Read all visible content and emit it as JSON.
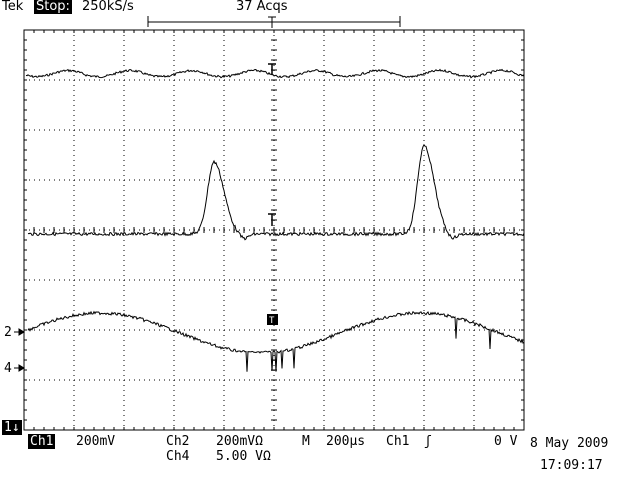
{
  "header": {
    "brand": "Tek",
    "run_state": "Stop:",
    "sample_rate": "250kS/s",
    "acquisitions": "37 Acqs"
  },
  "markers": {
    "ch2": "2",
    "ch4": "4",
    "ch1": "1"
  },
  "footer": {
    "ch1_label": "Ch1",
    "ch1_scale": "200mV",
    "ch2_label": "Ch2",
    "ch2_scale": "200mVΩ",
    "ch4_label": "Ch4",
    "ch4_scale": "5.00 VΩ",
    "timebase_label": "M",
    "timebase": "200µs",
    "trigger_source": "Ch1",
    "trigger_level": "0 V",
    "date": "8 May 2009",
    "time": "17:09:17"
  },
  "colors": {
    "trace": "#000000",
    "background": "#ffffff"
  },
  "chart_data": {
    "type": "line",
    "grid": {
      "divisions_x": 10,
      "divisions_y": 8,
      "dotted": true
    },
    "series": [
      {
        "channel": "Ch1",
        "scale": "200mV",
        "shape": "flat ripple, small periodic bumps"
      },
      {
        "channel": "Ch2",
        "scale": "200mVΩ",
        "shape": "baseline with two narrow peaks"
      },
      {
        "channel": "Ch4",
        "scale": "5.00 VΩ",
        "shape": "slow sinusoid-like arcs with spikes"
      }
    ]
  }
}
